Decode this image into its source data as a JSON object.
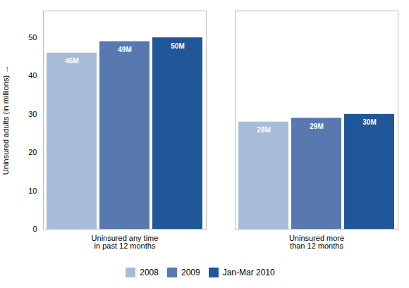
{
  "chart_data": {
    "type": "bar",
    "categories": [
      "Uninsured any time\nin past 12 months",
      "Uninsured more\nthan 12 months"
    ],
    "series": [
      {
        "name": "2008",
        "color": "#a8bcd8",
        "values": [
          46,
          28
        ],
        "value_labels": [
          "46M",
          "28M"
        ]
      },
      {
        "name": "2009",
        "color": "#5878b0",
        "values": [
          49,
          29
        ],
        "value_labels": [
          "49M",
          "29M"
        ]
      },
      {
        "name": "Jan-Mar 2010",
        "color": "#1f5799",
        "values": [
          50,
          30
        ],
        "value_labels": [
          "50M",
          "30M"
        ]
      }
    ],
    "ylabel": "Uninsured adults (in millions)",
    "ylim": [
      0,
      57
    ],
    "yticks": [
      0,
      10,
      20,
      30,
      40,
      50
    ],
    "grid": false,
    "data_labels": true,
    "legend": "bottom"
  }
}
